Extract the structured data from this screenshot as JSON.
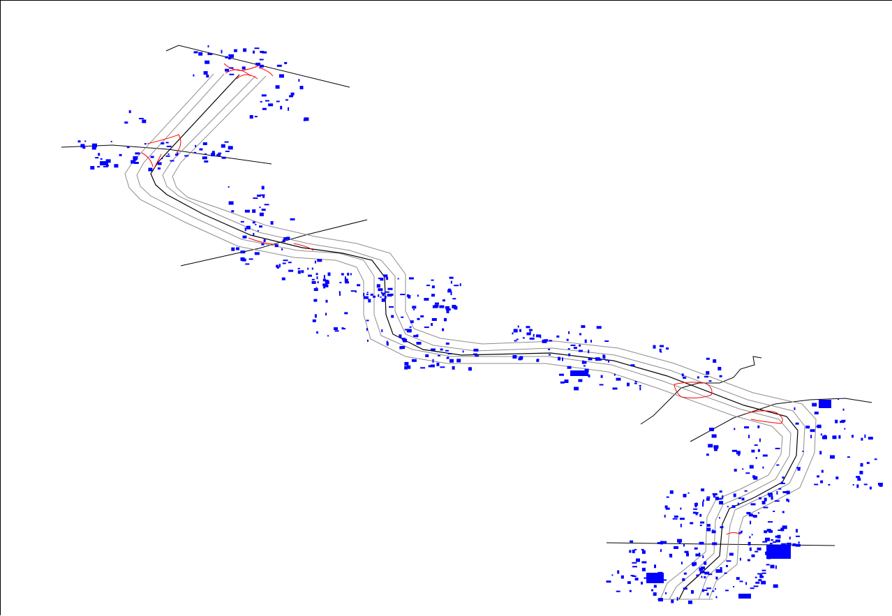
{
  "view": {
    "background": "#ffffff",
    "frame_color": "#000000"
  },
  "layers": {
    "buildings": {
      "color": "#0000ff",
      "description_visible": false
    },
    "corridor_centerline": {
      "color": "#000000"
    },
    "corridor_offsets": {
      "color": "#808080"
    },
    "interchanges": {
      "color": "#ff0000"
    },
    "crossing_roads": {
      "color": "#000000"
    }
  }
}
